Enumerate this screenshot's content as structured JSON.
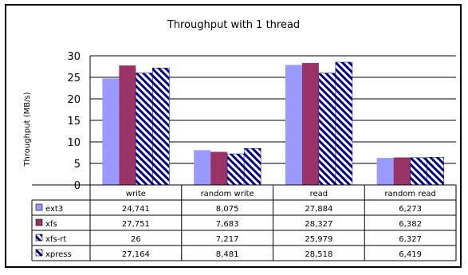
{
  "chart_data": {
    "type": "bar",
    "title": "Throughput with 1 thread",
    "ylabel": "Throughput (MB/s)",
    "xlabel": "",
    "ylim": [
      0,
      30
    ],
    "yticks": [
      0,
      5,
      10,
      15,
      20,
      25,
      30
    ],
    "grid": true,
    "legend": "data-table",
    "categories": [
      "write",
      "random write",
      "read",
      "random read"
    ],
    "series": [
      {
        "name": "ext3",
        "color": "#9999ff",
        "pattern": "solid",
        "values": [
          24.741,
          8.075,
          27.884,
          6.273
        ],
        "labels": [
          "24,741",
          "8,075",
          "27,884",
          "6,273"
        ]
      },
      {
        "name": "xfs",
        "color": "#993366",
        "pattern": "solid",
        "values": [
          27.751,
          7.683,
          28.327,
          6.382
        ],
        "labels": [
          "27,751",
          "7,683",
          "28,327",
          "6,382"
        ]
      },
      {
        "name": "xfs-rt",
        "color": "#000080",
        "pattern": "hatch",
        "values": [
          26,
          7.217,
          25.979,
          6.327
        ],
        "labels": [
          "26",
          "7,217",
          "25,979",
          "6,327"
        ]
      },
      {
        "name": "xpress",
        "color": "#000080",
        "pattern": "hatch",
        "values": [
          27.164,
          8.481,
          28.518,
          6.419
        ],
        "labels": [
          "27,164",
          "8,481",
          "28,518",
          "6,419"
        ]
      }
    ]
  }
}
